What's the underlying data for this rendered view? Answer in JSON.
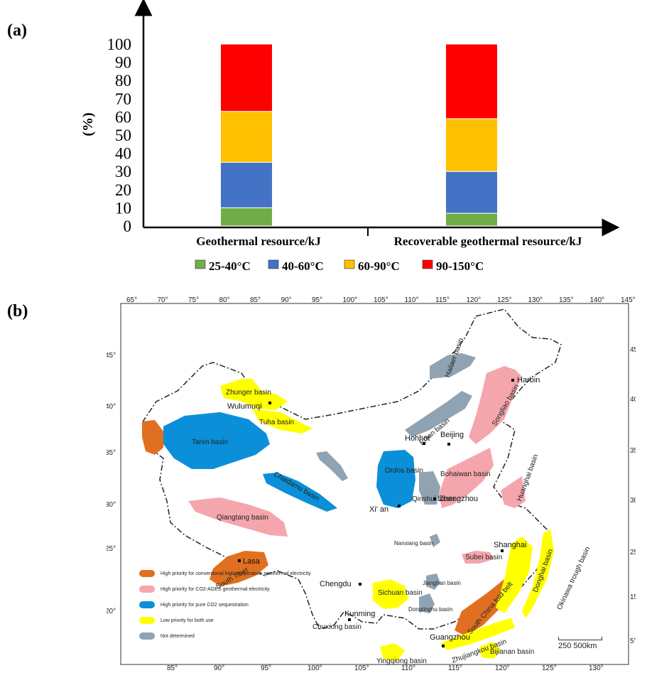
{
  "panel_a_label": "(a)",
  "panel_b_label": "(b)",
  "chart_data": {
    "type": "bar",
    "stacked": true,
    "categories": [
      "Geothermal resource/kJ",
      "Recoverable geothermal resource/kJ"
    ],
    "series": [
      {
        "name": "25-40°C",
        "color": "#70ad47",
        "values": [
          10,
          7
        ]
      },
      {
        "name": "40-60°C",
        "color": "#4472c4",
        "values": [
          25,
          23
        ]
      },
      {
        "name": "60-90°C",
        "color": "#ffc000",
        "values": [
          28,
          29
        ]
      },
      {
        "name": "90-150°C",
        "color": "#ff0000",
        "values": [
          37,
          41
        ]
      }
    ],
    "ylabel": "(%)",
    "ylim": [
      0,
      100
    ],
    "yticks": [
      0,
      10,
      20,
      30,
      40,
      50,
      60,
      70,
      80,
      90,
      100
    ],
    "legend_position": "bottom"
  },
  "map": {
    "top_lon_ticks": [
      "65°",
      "70°",
      "75°",
      "80°",
      "85°",
      "90°",
      "95°",
      "100°",
      "105°",
      "110°",
      "115°",
      "120°",
      "125°",
      "130°",
      "135°",
      "140°",
      "145°"
    ],
    "bottom_lon_ticks": [
      "85°",
      "90°",
      "95°",
      "100°",
      "105°",
      "110°",
      "115°",
      "120°",
      "125°",
      "130°"
    ],
    "left_lat_ticks": [
      "45°",
      "40°",
      "35°",
      "30°",
      "25°",
      "20°"
    ],
    "right_lat_ticks": [
      "45",
      "40",
      "35",
      "30",
      "25",
      "15",
      "5°"
    ],
    "regions": [
      {
        "label": "Hailaer basin",
        "color": "#8fa3b3"
      },
      {
        "label": "Zhunger basin",
        "color": "#ffff00"
      },
      {
        "label": "Songliao basin",
        "color": "#f4a6ac"
      },
      {
        "label": "Tuha basin",
        "color": "#ffff00"
      },
      {
        "label": "Erlian basin",
        "color": "#8fa3b3"
      },
      {
        "label": "Tarim basin",
        "color": "#0b8fd8"
      },
      {
        "label": "Chaidamu basin",
        "color": "#0b8fd8"
      },
      {
        "label": "Ordos basin",
        "color": "#0b8fd8"
      },
      {
        "label": "Bohaiwan basin",
        "color": "#f4a6ac"
      },
      {
        "label": "Huanghai basin",
        "color": "#f4a6ac"
      },
      {
        "label": "Qinshui basin",
        "color": "#8fa3b3"
      },
      {
        "label": "Qiangtang basin",
        "color": "#f4a6ac"
      },
      {
        "label": "South Tibet",
        "color": "#e07020"
      },
      {
        "label": "Sichuan basin",
        "color": "#ffff00"
      },
      {
        "label": "Subei basin",
        "color": "#f4a6ac"
      },
      {
        "label": "Jianghan basin",
        "color": "#8fa3b3"
      },
      {
        "label": "Dongtinghu basin",
        "color": "#8fa3b3"
      },
      {
        "label": "South China fold belt",
        "color": "#e07020"
      },
      {
        "label": "Donghai basin",
        "color": "#ffff00"
      },
      {
        "label": "Okinawa trough basin",
        "color": "#ffff00"
      },
      {
        "label": "Zhujiangkou basin",
        "color": "#ffff00"
      },
      {
        "label": "Chuxiong basin",
        "color": "#8fa3b3"
      },
      {
        "label": "Yingqiong basin",
        "color": "#ffff00"
      },
      {
        "label": "Bijianan basin",
        "color": "#ffff00"
      },
      {
        "label": "Nanxiang basin",
        "color": "#8fa3b3"
      }
    ],
    "cities": [
      "Harbin",
      "Wulumuqi",
      "Hohhot",
      "Beijing",
      "Xi' an",
      "Zhengzhou",
      "Lasa",
      "Chengdu",
      "Shanghai",
      "Kunming",
      "Guangzhou"
    ],
    "legend": [
      {
        "label": "High priority for conventional high temperature geothermal electricity",
        "color": "#e07020"
      },
      {
        "label": "High priority for CO2-AGES geothermal electricity",
        "color": "#f4a6ac"
      },
      {
        "label": "High priority for pure CO2 sequestration",
        "color": "#0b8fd8"
      },
      {
        "label": "Low priority for both use",
        "color": "#ffff00"
      },
      {
        "label": "Not determined",
        "color": "#8fa3b3"
      }
    ],
    "scale_label": "250 500km"
  }
}
